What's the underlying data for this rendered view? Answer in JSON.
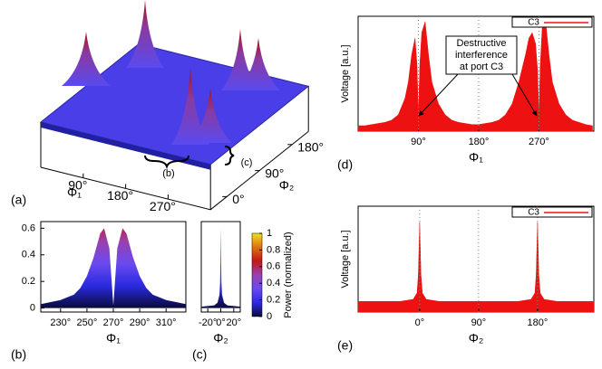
{
  "chart_data": [
    {
      "type": "surface3d",
      "panel_label": "(a)",
      "xlabel": "Φ₁",
      "ylabel": "Φ₂",
      "xlim": [
        0,
        360
      ],
      "ylim": [
        -45,
        225
      ],
      "xticks": [
        {
          "value": 90,
          "label": "90°"
        },
        {
          "value": 180,
          "label": "180°"
        },
        {
          "value": 270,
          "label": "270°"
        }
      ],
      "yticks": [
        {
          "value": 0,
          "label": "0°"
        },
        {
          "value": 90,
          "label": "90°"
        },
        {
          "value": 180,
          "label": "180°"
        }
      ],
      "annotations": [
        "(b)",
        "(c)"
      ]
    },
    {
      "type": "area",
      "panel_label": "(b)",
      "xlabel": "Φ₁",
      "x": [
        215,
        220,
        225,
        230,
        235,
        240,
        245,
        250,
        255,
        260,
        263,
        267,
        270,
        273,
        277,
        280,
        285,
        290,
        295,
        300,
        305,
        310,
        315,
        320,
        325
      ],
      "values": [
        0.03,
        0.04,
        0.05,
        0.06,
        0.08,
        0.1,
        0.15,
        0.24,
        0.38,
        0.56,
        0.6,
        0.45,
        0.02,
        0.45,
        0.6,
        0.56,
        0.38,
        0.24,
        0.15,
        0.1,
        0.08,
        0.06,
        0.05,
        0.04,
        0.03
      ],
      "xlim": [
        215,
        325
      ],
      "ylim": [
        -0.03,
        0.65
      ],
      "xticks": [
        {
          "value": 230,
          "label": "230°"
        },
        {
          "value": 250,
          "label": "250°"
        },
        {
          "value": 270,
          "label": "270°"
        },
        {
          "value": 290,
          "label": "290°"
        },
        {
          "value": 310,
          "label": "310°"
        }
      ],
      "yticks": [
        0,
        0.2,
        0.4,
        0.6
      ]
    },
    {
      "type": "area",
      "panel_label": "(c)",
      "xlabel": "Φ₂",
      "x": [
        -30,
        -20,
        -10,
        -5,
        -2,
        -1,
        0,
        1,
        2,
        5,
        10,
        20,
        30
      ],
      "values": [
        0.01,
        0.015,
        0.02,
        0.04,
        0.1,
        0.2,
        0.6,
        0.2,
        0.1,
        0.04,
        0.02,
        0.015,
        0.01
      ],
      "xlim": [
        -30,
        30
      ],
      "ylim": [
        -0.03,
        0.65
      ],
      "xticks": [
        {
          "value": -20,
          "label": "-20°"
        },
        {
          "value": 0,
          "label": "0°"
        },
        {
          "value": 20,
          "label": "20°"
        }
      ]
    },
    {
      "type": "colorbar",
      "label": "Power (normalized)",
      "ylim": [
        0,
        1
      ],
      "yticks": [
        0,
        0.2,
        0.4,
        0.6,
        0.8,
        1
      ],
      "colors": [
        "#0a0a3a",
        "#2a2ae0",
        "#6a4af0",
        "#9a40b0",
        "#c01818",
        "#e07010",
        "#f0e020"
      ]
    },
    {
      "type": "area",
      "panel_label": "(d)",
      "xlabel": "Φ₁",
      "ylabel": "Voltage [a.u.]",
      "annotation": [
        "Destructive",
        "interference",
        "at port C3"
      ],
      "x": [
        0,
        10,
        20,
        30,
        40,
        50,
        60,
        70,
        75,
        80,
        85,
        88,
        90,
        92,
        95,
        100,
        105,
        110,
        120,
        130,
        140,
        150,
        160,
        170,
        180,
        190,
        200,
        210,
        220,
        230,
        240,
        250,
        255,
        260,
        265,
        268,
        270,
        272,
        275,
        280,
        285,
        290,
        300,
        310,
        320,
        330,
        340,
        350
      ],
      "series": [
        {
          "name": "C3",
          "color": "#ee1111",
          "values": [
            0.05,
            0.05,
            0.06,
            0.07,
            0.08,
            0.1,
            0.15,
            0.3,
            0.45,
            0.7,
            0.85,
            0.6,
            0.12,
            0.6,
            0.9,
            1.0,
            0.7,
            0.45,
            0.25,
            0.15,
            0.1,
            0.08,
            0.07,
            0.06,
            0.06,
            0.07,
            0.08,
            0.1,
            0.15,
            0.25,
            0.45,
            0.7,
            0.85,
            0.9,
            0.8,
            0.55,
            0.12,
            0.6,
            0.95,
            1.0,
            0.7,
            0.45,
            0.25,
            0.15,
            0.1,
            0.08,
            0.06,
            0.05
          ]
        }
      ],
      "xlim": [
        0,
        352
      ],
      "ylim": [
        0,
        1.05
      ],
      "xticks": [
        {
          "value": 90,
          "label": "90°"
        },
        {
          "value": 180,
          "label": "180°"
        },
        {
          "value": 270,
          "label": "270°"
        }
      ]
    },
    {
      "type": "area",
      "panel_label": "(e)",
      "xlabel": "Φ₂",
      "ylabel": "Voltage [a.u.]",
      "x": [
        -94,
        -60,
        -30,
        -10,
        -4,
        -2,
        0,
        2,
        4,
        10,
        30,
        60,
        90,
        120,
        150,
        170,
        176,
        178,
        180,
        182,
        184,
        190,
        210,
        240,
        266
      ],
      "series": [
        {
          "name": "C3",
          "color": "#ee1111",
          "values": [
            0.1,
            0.1,
            0.1,
            0.12,
            0.18,
            0.35,
            0.85,
            0.35,
            0.18,
            0.12,
            0.1,
            0.1,
            0.1,
            0.1,
            0.1,
            0.12,
            0.18,
            0.35,
            0.85,
            0.35,
            0.18,
            0.12,
            0.1,
            0.1,
            0.1
          ]
        }
      ],
      "xlim": [
        -94,
        266
      ],
      "ylim": [
        0,
        1
      ],
      "xticks": [
        {
          "value": 0,
          "label": "0°"
        },
        {
          "value": 90,
          "label": "90°"
        },
        {
          "value": 180,
          "label": "180°"
        }
      ]
    }
  ]
}
